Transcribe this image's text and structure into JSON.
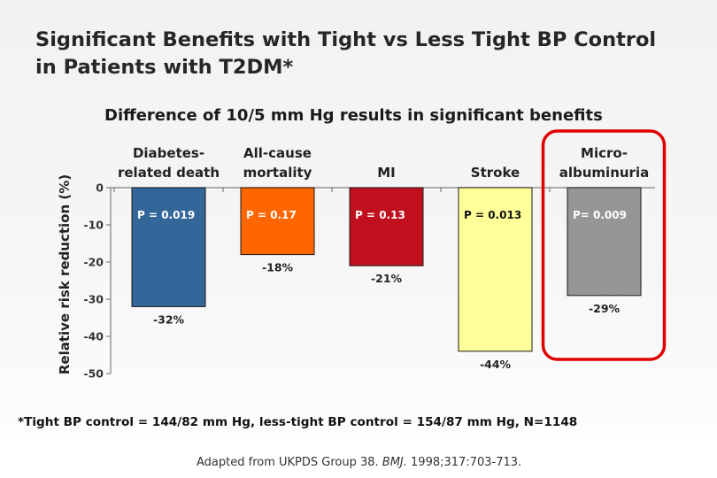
{
  "slide": {
    "title_line1": "Significant Benefits with Tight vs Less Tight BP Control",
    "title_line2": "in Patients with T2DM*",
    "subtitle": "Difference of 10/5 mm Hg results in significant benefits",
    "footnote": "*Tight BP control = 144/82 mm Hg, less-tight BP control = 154/87 mm Hg, N=1148",
    "citation_prefix": "Adapted from UKPDS Group 38. ",
    "citation_journal": "BMJ.",
    "citation_suffix": " 1998;317:703-713."
  },
  "chart_data": {
    "type": "bar",
    "title": "Difference of 10/5 mm Hg results in significant benefits",
    "ylabel": "Relative risk reduction (%)",
    "xlabel": "",
    "ylim": [
      -50,
      0
    ],
    "yticks": [
      0,
      -10,
      -20,
      -30,
      -40,
      -50
    ],
    "ytick_labels": [
      "0",
      "-10",
      "-20",
      "-30",
      "-40",
      "-50"
    ],
    "grid": false,
    "categories": [
      {
        "line1": "Diabetes-",
        "line2": "related death"
      },
      {
        "line1": "All-cause",
        "line2": "mortality"
      },
      {
        "line1": "",
        "line2": "MI"
      },
      {
        "line1": "",
        "line2": "Stroke"
      },
      {
        "line1": "Micro-",
        "line2": "albuminuria"
      }
    ],
    "values": [
      -32,
      -18,
      -21,
      -44,
      -29
    ],
    "value_labels": [
      "-32%",
      "-18%",
      "-21%",
      "-44%",
      "-29%"
    ],
    "p_values": [
      "P = 0.019",
      "P = 0.17",
      "P = 0.13",
      "P = 0.013",
      "P= 0.009"
    ],
    "colors": [
      "#336699",
      "#ff6600",
      "#c0101e",
      "#ffff99",
      "#969696"
    ],
    "p_label_colors": [
      "#ffffff",
      "#ffffff",
      "#ffffff",
      "#111111",
      "#ffffff"
    ],
    "highlight_index": 4,
    "highlight_color": "#e00000"
  }
}
